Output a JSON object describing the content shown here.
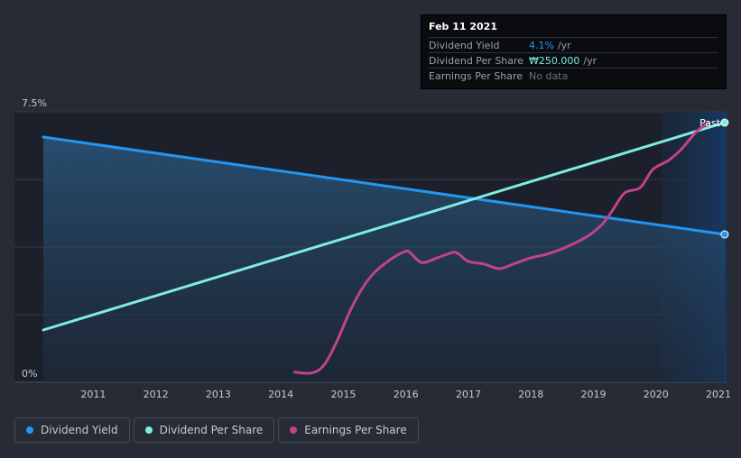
{
  "tooltip": {
    "date": "Feb 11 2021",
    "rows": [
      {
        "label": "Dividend Yield",
        "value": "4.1%",
        "unit": "/yr"
      },
      {
        "label": "Dividend Per Share",
        "value": "₩250.000",
        "unit": "/yr"
      },
      {
        "label": "Earnings Per Share",
        "value": "No data",
        "unit": ""
      }
    ]
  },
  "legend": [
    {
      "label": "Dividend Yield",
      "color": "#2196f3"
    },
    {
      "label": "Dividend Per Share",
      "color": "#7fecdf"
    },
    {
      "label": "Earnings Per Share",
      "color": "#c2428b"
    }
  ],
  "chart_data": {
    "type": "line",
    "y_tick_labels": [
      "0%",
      "7.5%"
    ],
    "ylim": [
      0,
      7.5
    ],
    "x_tick_labels": [
      "2011",
      "2012",
      "2013",
      "2014",
      "2015",
      "2016",
      "2017",
      "2018",
      "2019",
      "2020",
      "2021"
    ],
    "xlim": [
      2010.2,
      2021.13
    ],
    "past_label": "Past",
    "past_start": 2020.08,
    "series": [
      {
        "name": "Dividend Yield",
        "color": "#2196f3",
        "area": true,
        "x": [
          2010.2,
          2021.1
        ],
        "y": [
          6.8,
          4.1
        ]
      },
      {
        "name": "Dividend Per Share",
        "color": "#7fecdf",
        "x": [
          2010.2,
          2021.1
        ],
        "y": [
          1.45,
          7.2
        ]
      },
      {
        "name": "Earnings Per Share",
        "color": "#c2428b",
        "x": [
          2014.22,
          2014.5,
          2014.7,
          2014.9,
          2015.1,
          2015.3,
          2015.5,
          2015.75,
          2015.95,
          2016.05,
          2016.25,
          2016.5,
          2016.75,
          2016.85,
          2017.0,
          2017.25,
          2017.5,
          2017.75,
          2018.0,
          2018.25,
          2018.5,
          2018.75,
          2018.95,
          2019.15,
          2019.3,
          2019.5,
          2019.75,
          2019.95,
          2020.2,
          2020.4,
          2020.65,
          2020.85
        ],
        "y": [
          0.28,
          0.26,
          0.5,
          1.15,
          1.95,
          2.6,
          3.05,
          3.4,
          3.6,
          3.62,
          3.32,
          3.45,
          3.6,
          3.55,
          3.35,
          3.28,
          3.15,
          3.3,
          3.45,
          3.55,
          3.7,
          3.9,
          4.1,
          4.4,
          4.75,
          5.25,
          5.4,
          5.9,
          6.15,
          6.45,
          6.95,
          7.2
        ]
      }
    ]
  }
}
